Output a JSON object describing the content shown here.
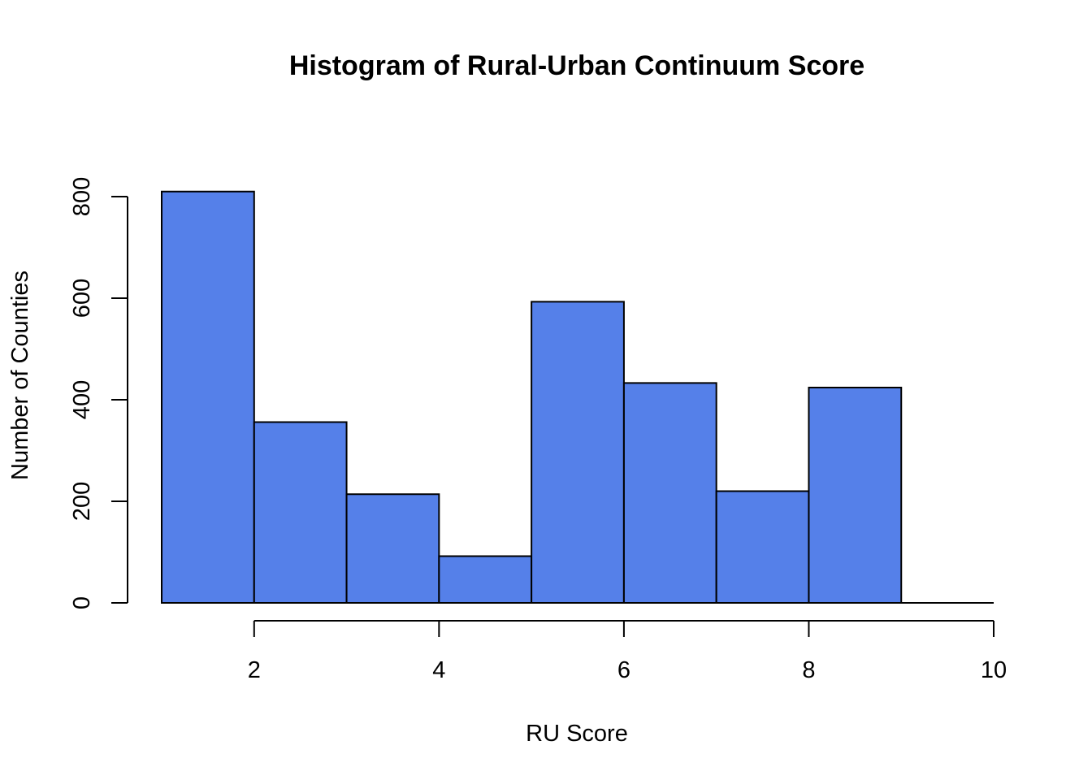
{
  "chart_data": {
    "type": "bar",
    "title": "Histogram of Rural-Urban Continuum Score",
    "xlabel": "RU Score",
    "ylabel": "Number of Counties",
    "bins": [
      [
        1,
        2
      ],
      [
        2,
        3
      ],
      [
        3,
        4
      ],
      [
        4,
        5
      ],
      [
        5,
        6
      ],
      [
        6,
        7
      ],
      [
        7,
        8
      ],
      [
        8,
        9
      ],
      [
        9,
        10
      ]
    ],
    "values": [
      810,
      356,
      214,
      92,
      593,
      433,
      220,
      424,
      0
    ],
    "xlim": [
      1,
      10
    ],
    "ylim": [
      0,
      800
    ],
    "x_ticks": [
      2,
      4,
      6,
      8,
      10
    ],
    "y_ticks": [
      0,
      200,
      400,
      600,
      800
    ],
    "bar_color": "#5580E9",
    "grid": false
  }
}
